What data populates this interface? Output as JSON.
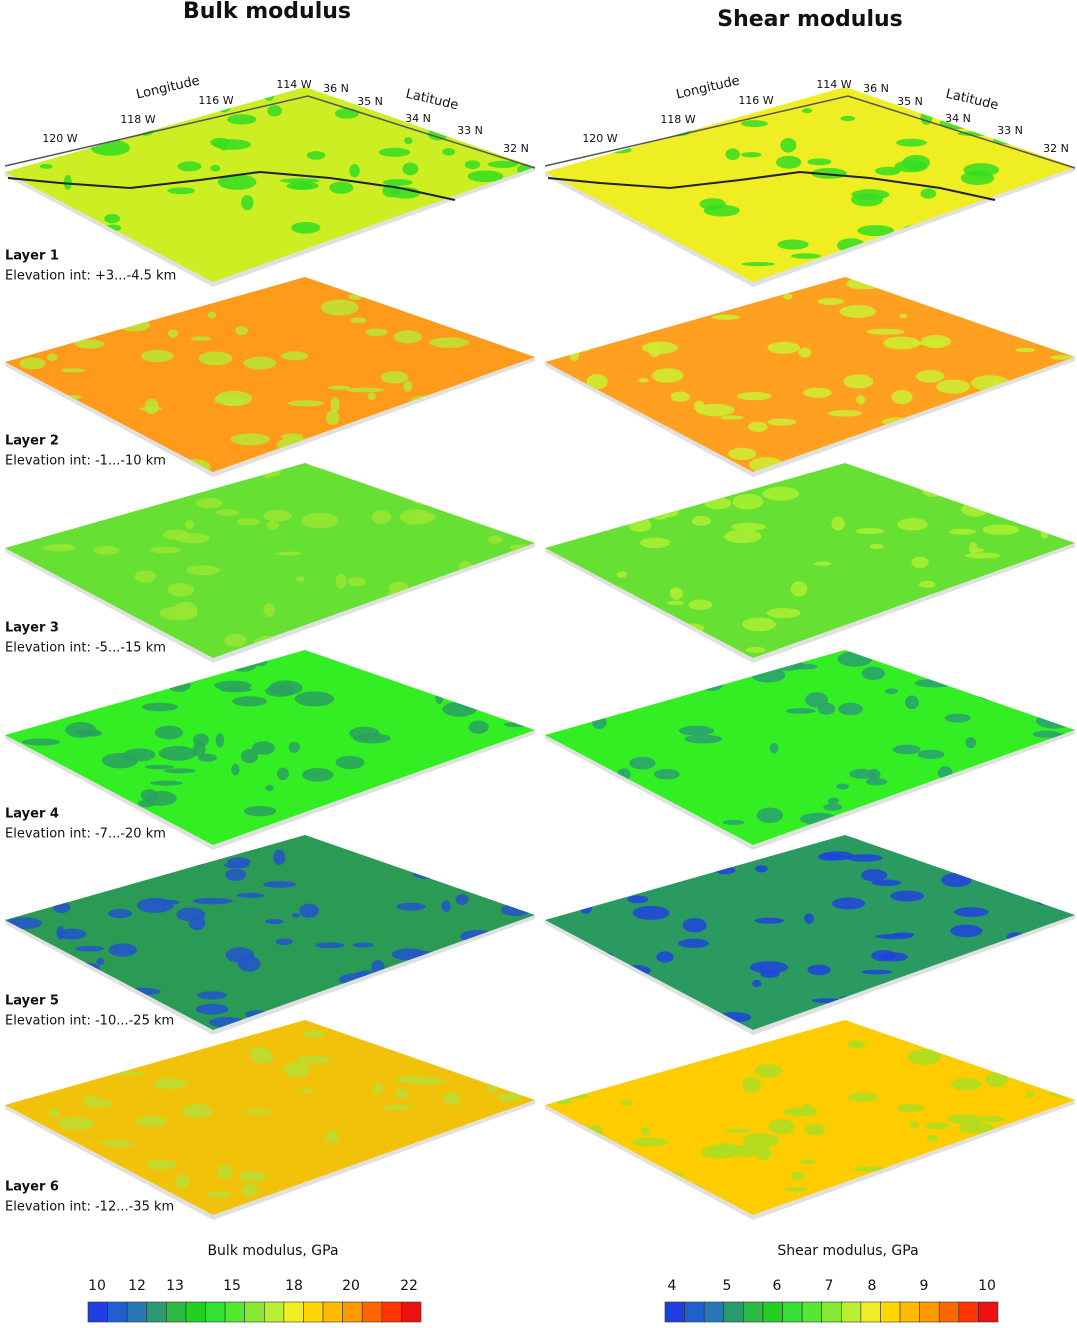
{
  "panels": [
    {
      "title": "Bulk modulus"
    },
    {
      "title": "Shear modulus"
    }
  ],
  "axes": {
    "longitude_label": "Longitude",
    "latitude_label": "Latitude",
    "longitude_ticks": [
      "120 W",
      "118 W",
      "116 W",
      "114 W"
    ],
    "latitude_ticks": [
      "36 N",
      "35 N",
      "34 N",
      "33 N",
      "32 N"
    ]
  },
  "layers": [
    {
      "name": "Layer 1",
      "elevation": "Elevation int: +3...-4.5 km"
    },
    {
      "name": "Layer 2",
      "elevation": "Elevation int: -1...-10 km"
    },
    {
      "name": "Layer 3",
      "elevation": "Elevation int: -5...-15 km"
    },
    {
      "name": "Layer 4",
      "elevation": "Elevation int: -7...-20 km"
    },
    {
      "name": "Layer 5",
      "elevation": "Elevation int: -10...-25 km"
    },
    {
      "name": "Layer 6",
      "elevation": "Elevation int: -12...-35 km"
    }
  ],
  "colorbars": [
    {
      "label": "Bulk modulus, GPa",
      "ticks": [
        "10",
        "12",
        "13",
        "15",
        "18",
        "20",
        "22"
      ]
    },
    {
      "label": "Shear modulus, GPa",
      "ticks": [
        "4",
        "5",
        "6",
        "7",
        "8",
        "9",
        "10"
      ]
    }
  ]
}
